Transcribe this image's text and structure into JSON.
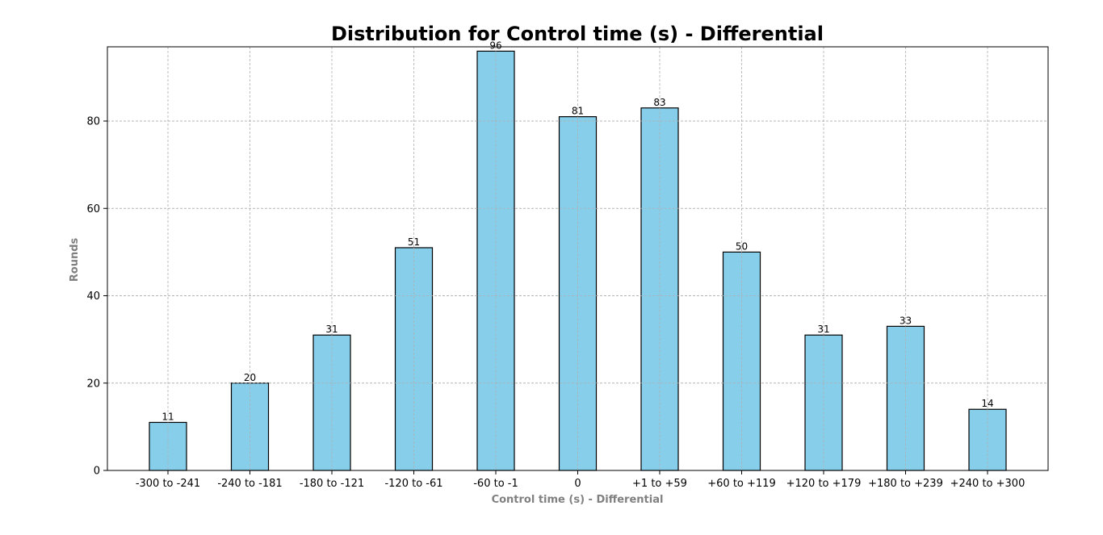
{
  "chart_data": {
    "type": "bar",
    "title": "Distribution for Control time (s) - Differential",
    "xlabel": "Control time (s) - Differential",
    "ylabel": "Rounds",
    "categories": [
      "-300 to -241",
      "-240 to -181",
      "-180 to -121",
      "-120 to -61",
      "-60 to -1",
      "0",
      "+1 to +59",
      "+60 to +119",
      "+120 to +179",
      "+180 to +239",
      "+240 to +300"
    ],
    "values": [
      11,
      20,
      31,
      51,
      96,
      81,
      83,
      50,
      31,
      33,
      14
    ],
    "yticks": [
      0,
      20,
      40,
      60,
      80
    ],
    "ylim": [
      0,
      97
    ],
    "grid": true,
    "bar_color": "#87CEEB",
    "edge_color": "#000000"
  }
}
